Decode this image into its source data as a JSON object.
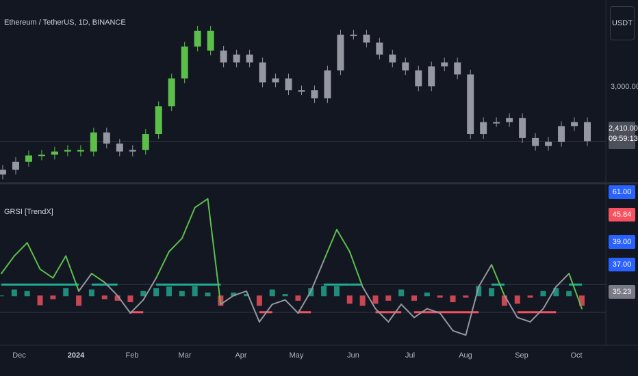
{
  "header": {
    "symbol_title": "Ethereum / TetherUS, 1D, BINANCE",
    "currency_button": "USDT"
  },
  "price_axis": {
    "level_label": "3,000.00",
    "last_price": "2,410.00",
    "countdown": "09:59:13"
  },
  "indicator": {
    "name": "GRSI [TrendX]",
    "tags": [
      {
        "text": "61.00",
        "color": "#2962ff"
      },
      {
        "text": "45.84",
        "color": "#f7525f"
      },
      {
        "text": "39.00",
        "color": "#2962ff"
      },
      {
        "text": "37.00",
        "color": "#2962ff"
      },
      {
        "text": "35.23",
        "color": "#787b86"
      }
    ]
  },
  "x_axis": [
    "Dec",
    "2024",
    "Feb",
    "Mar",
    "Apr",
    "May",
    "Jun",
    "Jul",
    "Aug",
    "Sep",
    "Oct"
  ],
  "colors": {
    "background": "#131722",
    "bull": "#5cbf4a",
    "neutral": "#9598a1",
    "teal": "#22ab94",
    "red": "#f7525f"
  },
  "chart_data": [
    {
      "type": "candlestick",
      "title": "Ethereum / TetherUS, 1D, BINANCE",
      "x": [
        "Nov 26",
        "Dec 3",
        "Dec 10",
        "Dec 17",
        "Dec 24",
        "Dec 31",
        "Jan 7",
        "Jan 14",
        "Jan 21",
        "Jan 28",
        "Feb 4",
        "Feb 11",
        "Feb 18",
        "Feb 25",
        "Mar 3",
        "Mar 10",
        "Mar 17",
        "Mar 24",
        "Mar 31",
        "Apr 7",
        "Apr 14",
        "Apr 21",
        "Apr 28",
        "May 5",
        "May 12",
        "May 19",
        "May 26",
        "Jun 2",
        "Jun 9",
        "Jun 16",
        "Jun 23",
        "Jun 30",
        "Jul 7",
        "Jul 14",
        "Jul 21",
        "Jul 28",
        "Aug 4",
        "Aug 11",
        "Aug 18",
        "Aug 25",
        "Sep 1",
        "Sep 8",
        "Sep 15",
        "Sep 22",
        "Sep 29",
        "Oct 3"
      ],
      "close": [
        2050,
        2150,
        2230,
        2240,
        2280,
        2300,
        2280,
        2520,
        2380,
        2280,
        2300,
        2500,
        2850,
        3200,
        3600,
        3800,
        3550,
        3400,
        3500,
        3400,
        3150,
        3200,
        3050,
        3050,
        2950,
        3300,
        3750,
        3750,
        3650,
        3500,
        3400,
        3300,
        3100,
        3350,
        3400,
        3250,
        2500,
        2650,
        2650,
        2700,
        2450,
        2350,
        2400,
        2600,
        2650,
        2410
      ],
      "ylim": [
        1950,
        4100
      ],
      "y_tick": 3000
    },
    {
      "type": "line",
      "title": "GRSI [TrendX]",
      "x": [
        "Nov 26",
        "Dec 3",
        "Dec 10",
        "Dec 17",
        "Dec 24",
        "Dec 31",
        "Jan 7",
        "Jan 14",
        "Jan 21",
        "Jan 28",
        "Feb 4",
        "Feb 11",
        "Feb 18",
        "Feb 25",
        "Mar 3",
        "Mar 10",
        "Mar 17",
        "Mar 24",
        "Mar 31",
        "Apr 7",
        "Apr 14",
        "Apr 21",
        "Apr 28",
        "May 5",
        "May 12",
        "May 19",
        "May 26",
        "Jun 2",
        "Jun 9",
        "Jun 16",
        "Jun 23",
        "Jun 30",
        "Jul 7",
        "Jul 14",
        "Jul 21",
        "Jul 28",
        "Aug 4",
        "Aug 11",
        "Aug 18",
        "Aug 25",
        "Sep 1",
        "Sep 8",
        "Sep 15",
        "Sep 22",
        "Sep 29",
        "Oct 3"
      ],
      "values": [
        44,
        48,
        51,
        45,
        43,
        48,
        40,
        44,
        42,
        39,
        35,
        38,
        43,
        49,
        52,
        59,
        61,
        37,
        39,
        40,
        33,
        37,
        38,
        35,
        40,
        47,
        54,
        49,
        41,
        36,
        33,
        37,
        34,
        36,
        35,
        31,
        30,
        41,
        46,
        39,
        34,
        33,
        36,
        41,
        44,
        36
      ],
      "signal_line": 41.5,
      "lower_line": 35.2,
      "ylim": [
        28,
        63
      ]
    }
  ]
}
